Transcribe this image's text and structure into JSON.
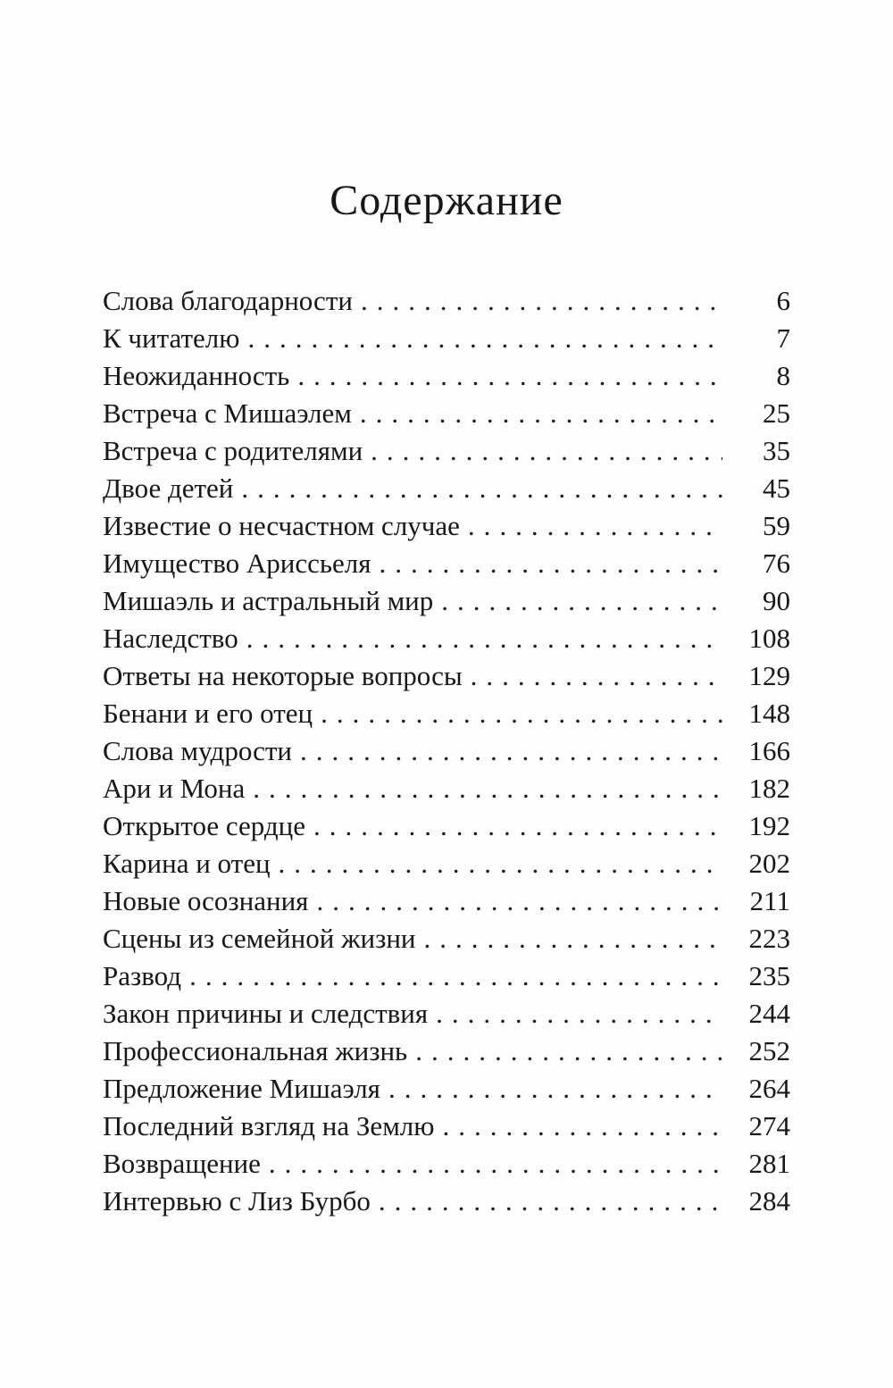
{
  "document": {
    "title": "Содержание",
    "colors": {
      "text": "#171717",
      "background": "#fefefe"
    },
    "entries": [
      {
        "title": "Слова благодарности",
        "page": "6"
      },
      {
        "title": "К читателю",
        "page": "7"
      },
      {
        "title": "Неожиданность",
        "page": "8"
      },
      {
        "title": "Встреча с Мишаэлем",
        "page": "25"
      },
      {
        "title": "Встреча с родителями",
        "page": "35"
      },
      {
        "title": "Двое детей",
        "page": "45"
      },
      {
        "title": "Известие о несчастном случае",
        "page": "59"
      },
      {
        "title": "Имущество Ариссьеля",
        "page": "76"
      },
      {
        "title": "Мишаэль и астральный мир",
        "page": "90"
      },
      {
        "title": "Наследство",
        "page": "108"
      },
      {
        "title": "Ответы на некоторые вопросы",
        "page": "129"
      },
      {
        "title": "Бенани и его отец",
        "page": "148"
      },
      {
        "title": "Слова мудрости",
        "page": "166"
      },
      {
        "title": "Ари и Мона",
        "page": "182"
      },
      {
        "title": "Открытое сердце",
        "page": "192"
      },
      {
        "title": "Карина и отец",
        "page": "202"
      },
      {
        "title": "Новые осознания",
        "page": "211"
      },
      {
        "title": "Сцены из семейной жизни",
        "page": "223"
      },
      {
        "title": "Развод",
        "page": "235"
      },
      {
        "title": "Закон причины и следствия",
        "page": "244"
      },
      {
        "title": "Профессиональная жизнь",
        "page": "252"
      },
      {
        "title": "Предложение Мишаэля",
        "page": "264"
      },
      {
        "title": "Последний взгляд на Землю",
        "page": "274"
      },
      {
        "title": "Возвращение",
        "page": "281"
      },
      {
        "title": "Интервью с Лиз Бурбо",
        "page": "284"
      }
    ]
  }
}
